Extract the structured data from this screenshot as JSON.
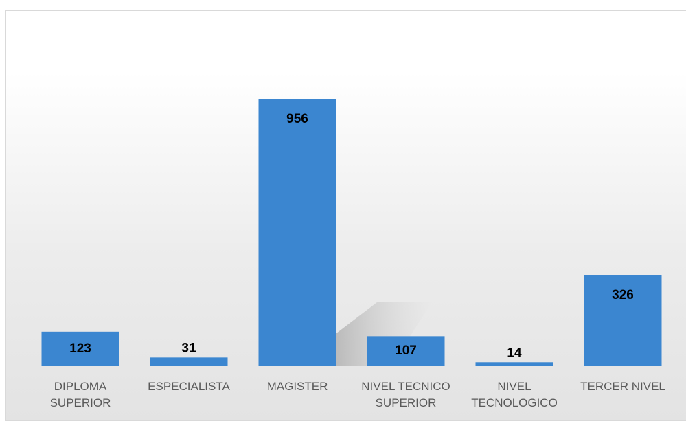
{
  "chart_data": {
    "type": "bar",
    "categories": [
      "DIPLOMA SUPERIOR",
      "ESPECIALISTA",
      "MAGISTER",
      "NIVEL TECNICO SUPERIOR",
      "NIVEL TECNOLOGICO",
      "TERCER NIVEL"
    ],
    "values": [
      123,
      31,
      956,
      107,
      14,
      326
    ],
    "color": "#3b86d0"
  }
}
